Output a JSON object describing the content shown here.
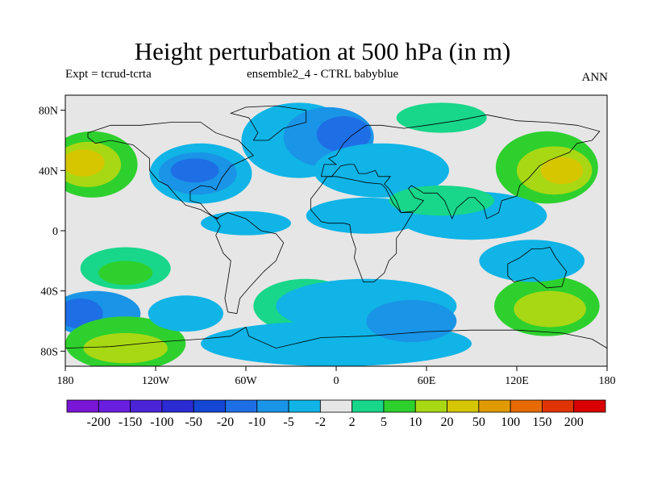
{
  "title": "Height perturbation at 500 hPa (in m)",
  "subtitle_left": "Expt = tcrud-tcrta",
  "subtitle_center": "ensemble2_4 - CTRL babyblue",
  "subtitle_right": "ANN",
  "axes": {
    "lon_range": [
      -180,
      180
    ],
    "lat_range": [
      -90,
      90
    ],
    "x_ticks": [
      {
        "value": -180,
        "label": "180"
      },
      {
        "value": -120,
        "label": "120W"
      },
      {
        "value": -60,
        "label": "60W"
      },
      {
        "value": 0,
        "label": "0"
      },
      {
        "value": 60,
        "label": "60E"
      },
      {
        "value": 120,
        "label": "120E"
      },
      {
        "value": 180,
        "label": "180"
      }
    ],
    "y_ticks": [
      {
        "value": 80,
        "label": "80N"
      },
      {
        "value": 40,
        "label": "40N"
      },
      {
        "value": 0,
        "label": "0"
      },
      {
        "value": -40,
        "label": "40S"
      },
      {
        "value": -80,
        "label": "80S"
      }
    ]
  },
  "colorbar": {
    "colors": [
      "#7a16d6",
      "#6a1ee0",
      "#4c24d8",
      "#2a2bd3",
      "#1446d4",
      "#1e6ee6",
      "#1a94e6",
      "#10b4e6",
      "#e6e6e6",
      "#18d68a",
      "#2ed02e",
      "#a8d814",
      "#d6c600",
      "#e09a00",
      "#e66a00",
      "#e03400",
      "#d80000"
    ],
    "labels": [
      "-200",
      "-150",
      "-100",
      "-50",
      "-20",
      "-10",
      "-5",
      "-2",
      "2",
      "5",
      "10",
      "20",
      "50",
      "100",
      "150",
      "200"
    ]
  },
  "field": {
    "background_level": 8,
    "blobs": [
      {
        "lon": -162,
        "lat": 44,
        "rx": 30,
        "ry": 22,
        "level": 10
      },
      {
        "lon": -165,
        "lat": 44,
        "rx": 22,
        "ry": 15,
        "level": 11
      },
      {
        "lon": -168,
        "lat": 45,
        "rx": 14,
        "ry": 9,
        "level": 12
      },
      {
        "lon": -90,
        "lat": 38,
        "rx": 34,
        "ry": 20,
        "level": 7
      },
      {
        "lon": -92,
        "lat": 38,
        "rx": 26,
        "ry": 14,
        "level": 6
      },
      {
        "lon": -94,
        "lat": 40,
        "rx": 16,
        "ry": 8,
        "level": 5
      },
      {
        "lon": -25,
        "lat": 60,
        "rx": 38,
        "ry": 25,
        "level": 7
      },
      {
        "lon": -5,
        "lat": 62,
        "rx": 30,
        "ry": 20,
        "level": 6
      },
      {
        "lon": 5,
        "lat": 64,
        "rx": 18,
        "ry": 12,
        "level": 5
      },
      {
        "lon": 70,
        "lat": 75,
        "rx": 30,
        "ry": 10,
        "level": 9
      },
      {
        "lon": 140,
        "lat": 42,
        "rx": 34,
        "ry": 24,
        "level": 10
      },
      {
        "lon": 145,
        "lat": 40,
        "rx": 25,
        "ry": 16,
        "level": 11
      },
      {
        "lon": 150,
        "lat": 40,
        "rx": 14,
        "ry": 9,
        "level": 12
      },
      {
        "lon": 30,
        "lat": 40,
        "rx": 45,
        "ry": 18,
        "level": 7
      },
      {
        "lon": 20,
        "lat": 10,
        "rx": 40,
        "ry": 12,
        "level": 7
      },
      {
        "lon": 90,
        "lat": 10,
        "rx": 50,
        "ry": 16,
        "level": 7
      },
      {
        "lon": 70,
        "lat": 20,
        "rx": 35,
        "ry": 10,
        "level": 9
      },
      {
        "lon": -60,
        "lat": 5,
        "rx": 30,
        "ry": 8,
        "level": 7
      },
      {
        "lon": -140,
        "lat": -25,
        "rx": 30,
        "ry": 14,
        "level": 9
      },
      {
        "lon": -140,
        "lat": -28,
        "rx": 18,
        "ry": 8,
        "level": 10
      },
      {
        "lon": -160,
        "lat": -55,
        "rx": 30,
        "ry": 15,
        "level": 6
      },
      {
        "lon": -170,
        "lat": -55,
        "rx": 15,
        "ry": 10,
        "level": 5
      },
      {
        "lon": -140,
        "lat": -75,
        "rx": 40,
        "ry": 18,
        "level": 10
      },
      {
        "lon": -140,
        "lat": -78,
        "rx": 28,
        "ry": 10,
        "level": 11
      },
      {
        "lon": -20,
        "lat": -50,
        "rx": 35,
        "ry": 18,
        "level": 9
      },
      {
        "lon": 20,
        "lat": -50,
        "rx": 60,
        "ry": 18,
        "level": 7
      },
      {
        "lon": 0,
        "lat": -75,
        "rx": 90,
        "ry": 15,
        "level": 7
      },
      {
        "lon": 50,
        "lat": -60,
        "rx": 30,
        "ry": 14,
        "level": 6
      },
      {
        "lon": 140,
        "lat": -50,
        "rx": 35,
        "ry": 20,
        "level": 10
      },
      {
        "lon": 142,
        "lat": -52,
        "rx": 24,
        "ry": 12,
        "level": 11
      },
      {
        "lon": 130,
        "lat": -20,
        "rx": 35,
        "ry": 14,
        "level": 7
      },
      {
        "lon": -100,
        "lat": -55,
        "rx": 25,
        "ry": 12,
        "level": 7
      }
    ]
  }
}
